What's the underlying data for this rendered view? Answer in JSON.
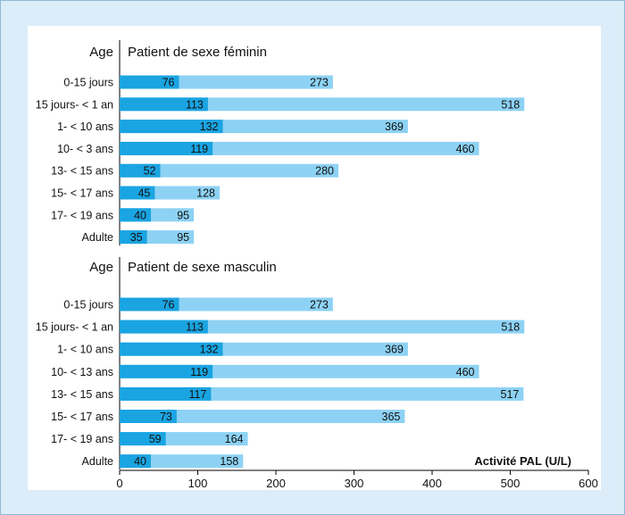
{
  "chart_data": {
    "type": "bar",
    "stacked": "overlay",
    "xlabel": "Activité PAL (U/L)",
    "xlim": [
      0,
      600
    ],
    "xticks": [
      0,
      100,
      200,
      300,
      400,
      500,
      600
    ],
    "legend": "none",
    "colors": {
      "lower": "#1aa4e1",
      "upper": "#8dd2f4",
      "axis": "#000000"
    },
    "groups": [
      {
        "age_label": "Age",
        "title": "Patient de sexe féminin",
        "categories": [
          "0-15 jours",
          "15 jours- < 1 an",
          "1- < 10 ans",
          "10- < 3 ans",
          "13- < 15 ans",
          "15- < 17 ans",
          "17- < 19 ans",
          "Adulte"
        ],
        "series": [
          {
            "name": "lower",
            "values": [
              76,
              113,
              132,
              119,
              52,
              45,
              40,
              35
            ]
          },
          {
            "name": "upper",
            "values": [
              273,
              518,
              369,
              460,
              280,
              128,
              95,
              95
            ]
          }
        ]
      },
      {
        "age_label": "Age",
        "title": "Patient de sexe masculin",
        "categories": [
          "0-15 jours",
          "15 jours- < 1 an",
          "1- < 10 ans",
          "10- < 13 ans",
          "13- < 15 ans",
          "15- < 17 ans",
          "17- < 19 ans",
          "Adulte"
        ],
        "series": [
          {
            "name": "lower",
            "values": [
              76,
              113,
              132,
              119,
              117,
              73,
              59,
              40
            ]
          },
          {
            "name": "upper",
            "values": [
              273,
              518,
              369,
              460,
              517,
              365,
              164,
              158
            ]
          }
        ]
      }
    ]
  }
}
